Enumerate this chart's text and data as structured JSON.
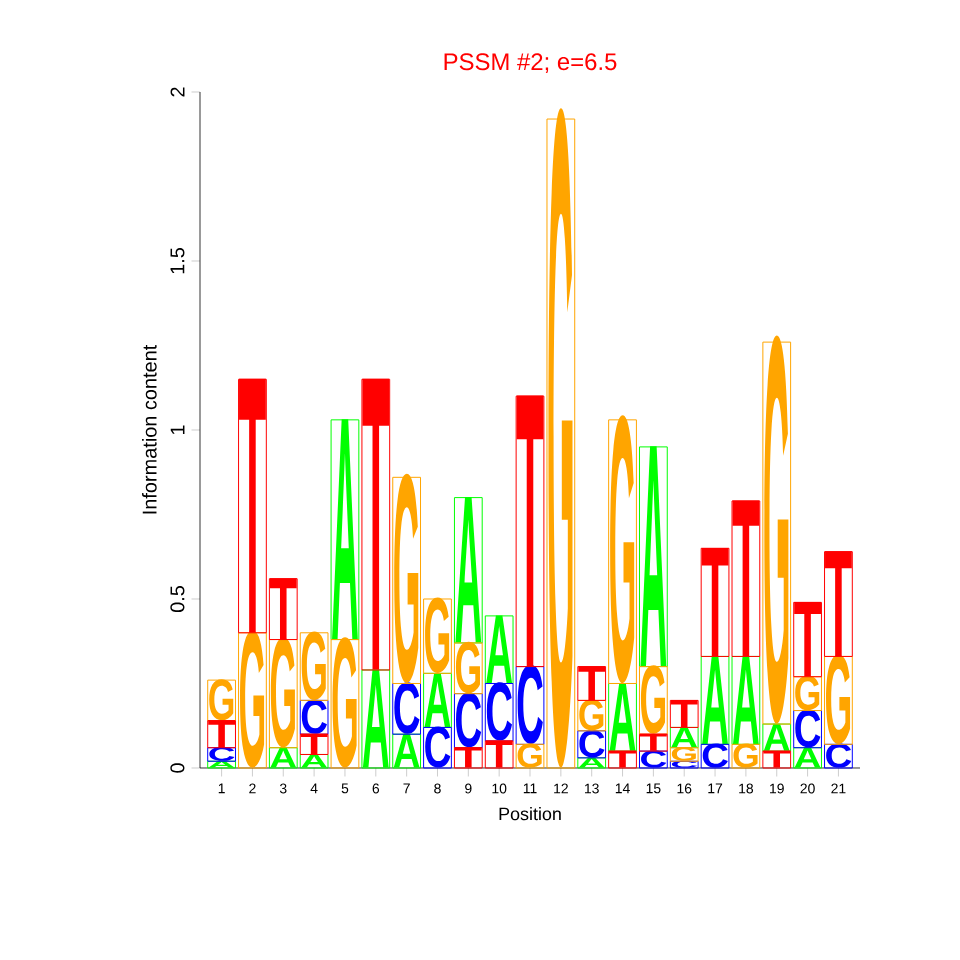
{
  "chart_data": {
    "type": "bar",
    "title": "PSSM #2; e=6.5",
    "xlabel": "Position",
    "ylabel": "Information content",
    "categories": [
      "1",
      "2",
      "3",
      "4",
      "5",
      "6",
      "7",
      "8",
      "9",
      "10",
      "11",
      "12",
      "13",
      "14",
      "15",
      "16",
      "17",
      "18",
      "19",
      "20",
      "21"
    ],
    "ylim": [
      0,
      2
    ],
    "yticks": [
      0,
      0.5,
      1,
      1.5,
      2
    ],
    "grid": false,
    "series": [
      {
        "name": "A",
        "color": "#00ff00",
        "values": [
          0.02,
          null,
          0.06,
          0.04,
          0.65,
          0.29,
          0.1,
          0.16,
          0.43,
          0.2,
          null,
          null,
          0.03,
          0.2,
          0.65,
          0.06,
          0.26,
          0.26,
          0.08,
          0.06,
          null
        ],
        "base": [
          0,
          null,
          0,
          0,
          0.38,
          0,
          0,
          0.12,
          0.37,
          0.25,
          null,
          null,
          0,
          0.05,
          0.3,
          0.06,
          0.07,
          0.07,
          0.05,
          0,
          null
        ]
      },
      {
        "name": "C",
        "color": "#0000ff",
        "values": [
          0.04,
          null,
          null,
          0.1,
          null,
          null,
          0.15,
          0.12,
          0.16,
          0.17,
          0.23,
          null,
          0.08,
          null,
          0.05,
          0.02,
          0.07,
          null,
          null,
          0.11,
          0.07
        ],
        "base": [
          0.02,
          null,
          null,
          0.1,
          null,
          null,
          0.1,
          0,
          0.06,
          0.08,
          0.07,
          null,
          0.03,
          null,
          0,
          0,
          0,
          null,
          null,
          0.06,
          0
        ]
      },
      {
        "name": "G",
        "color": "#ffa500",
        "values": [
          0.12,
          0.4,
          0.32,
          0.2,
          0.38,
          null,
          0.61,
          0.22,
          0.15,
          null,
          0.07,
          1.92,
          0.09,
          0.78,
          0.2,
          0.04,
          null,
          0.07,
          1.13,
          0.1,
          0.26
        ],
        "base": [
          0.14,
          0,
          0.06,
          0.2,
          0,
          null,
          0.25,
          0.28,
          0.22,
          null,
          0,
          0,
          0.11,
          0.25,
          0.1,
          0.02,
          null,
          0,
          0.13,
          0.17,
          0.07
        ]
      },
      {
        "name": "T",
        "color": "#ff0000",
        "values": [
          0.08,
          0.75,
          0.18,
          0.06,
          null,
          0.86,
          null,
          null,
          0.06,
          0.08,
          0.8,
          null,
          0.1,
          0.05,
          0.05,
          0.08,
          0.32,
          0.46,
          0.05,
          0.22,
          0.31
        ],
        "base": [
          0.06,
          0.4,
          0.38,
          0.04,
          null,
          0.29,
          null,
          null,
          0,
          0,
          0.3,
          null,
          0.2,
          0,
          0.05,
          0.12,
          0.33,
          0.33,
          0,
          0.27,
          0.33
        ]
      }
    ]
  }
}
